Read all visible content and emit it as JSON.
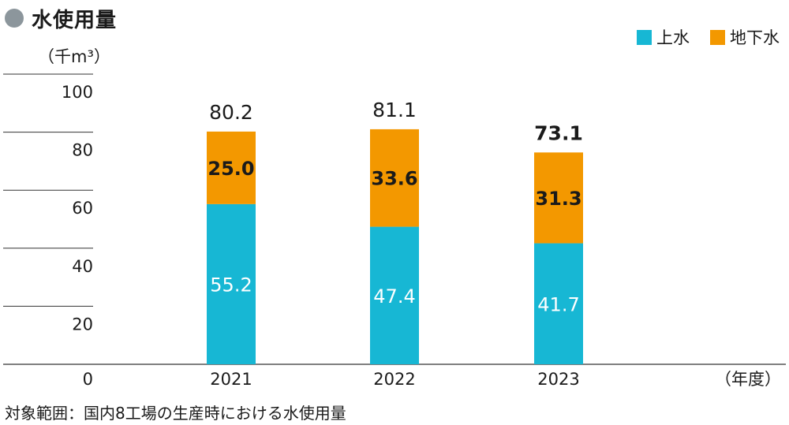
{
  "title": "水使用量",
  "unit_label": "（千m³）",
  "x_unit_label": "（年度）",
  "footnote": "対象範囲：国内8工場の生産時における水使用量",
  "colors": {
    "title_dot": "#8c969c",
    "tap_water": "#17b7d4",
    "groundwater": "#f39800",
    "grid": "#333333",
    "text": "#1a1a1a",
    "inner_label_light": "#ffffff",
    "inner_label_dark": "#1a1a1a"
  },
  "chart_data": {
    "type": "bar",
    "stacked": true,
    "categories": [
      "2021",
      "2022",
      "2023"
    ],
    "series": [
      {
        "name": "上水",
        "values": [
          55.2,
          47.4,
          41.7
        ]
      },
      {
        "name": "地下水",
        "values": [
          25.0,
          33.6,
          31.3
        ]
      }
    ],
    "totals": [
      "80.2",
      "81.1",
      "73.1"
    ],
    "value_labels": [
      [
        "55.2",
        "47.4",
        "41.7"
      ],
      [
        "25.0",
        "33.6",
        "31.3"
      ]
    ],
    "ylim": [
      0,
      100
    ],
    "yticks": [
      0,
      20,
      40,
      60,
      80,
      100
    ],
    "ytick_labels": [
      "0",
      "20",
      "40",
      "60",
      "80",
      "100"
    ],
    "ylabel": "（千m³）",
    "xlabel": "（年度）",
    "legend_position": "top-right",
    "grid": true
  }
}
